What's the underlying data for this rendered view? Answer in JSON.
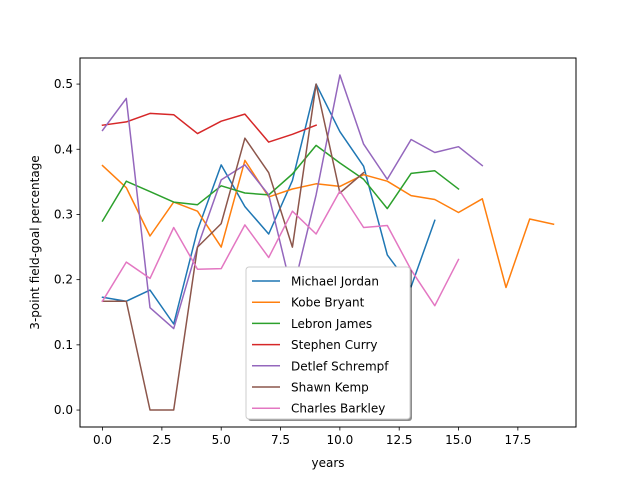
{
  "chart_data": {
    "type": "line",
    "title": "",
    "xlabel": "years",
    "ylabel": "3-point field-goal percentage",
    "xlim": [
      -0.95,
      19.95
    ],
    "ylim": [
      -0.026,
      0.54
    ],
    "xticks": [
      "0.0",
      "2.5",
      "5.0",
      "7.5",
      "10.0",
      "12.5",
      "15.0",
      "17.5"
    ],
    "xtick_values": [
      0,
      2.5,
      5,
      7.5,
      10,
      12.5,
      15,
      17.5
    ],
    "yticks": [
      "0.0",
      "0.1",
      "0.2",
      "0.3",
      "0.4",
      "0.5"
    ],
    "ytick_values": [
      0,
      0.1,
      0.2,
      0.3,
      0.4,
      0.5
    ],
    "grid": false,
    "legend_position": "lower-center",
    "series": [
      {
        "name": "Michael Jordan",
        "color": "#1f77b4",
        "values": [
          0.173,
          0.167,
          0.184,
          0.132,
          0.276,
          0.376,
          0.312,
          0.27,
          0.352,
          0.5,
          0.427,
          0.374,
          0.238,
          0.189,
          0.291
        ]
      },
      {
        "name": "Kobe Bryant",
        "color": "#ff7f0e",
        "values": [
          0.375,
          0.341,
          0.267,
          0.319,
          0.305,
          0.25,
          0.383,
          0.327,
          0.339,
          0.347,
          0.343,
          0.361,
          0.351,
          0.329,
          0.323,
          0.303,
          0.324,
          0.188,
          0.293,
          0.285
        ]
      },
      {
        "name": "Lebron James",
        "color": "#2ca02c",
        "values": [
          0.29,
          0.351,
          0.335,
          0.319,
          0.315,
          0.344,
          0.333,
          0.33,
          0.362,
          0.406,
          0.379,
          0.354,
          0.309,
          0.363,
          0.367,
          0.339
        ]
      },
      {
        "name": "Stephen Curry",
        "color": "#d62728",
        "values": [
          0.437,
          0.442,
          0.455,
          0.453,
          0.424,
          0.443,
          0.454,
          0.411,
          0.423,
          0.437
        ]
      },
      {
        "name": "Detlef Schrempf",
        "color": "#9467bd",
        "values": [
          0.429,
          0.478,
          0.157,
          0.125,
          0.25,
          0.353,
          0.376,
          0.33,
          0.179,
          0.33,
          0.514,
          0.408,
          0.354,
          0.415,
          0.395,
          0.404,
          0.375
        ]
      },
      {
        "name": "Shawn Kemp",
        "color": "#8c564b",
        "values": [
          0.167,
          0.167,
          0.0,
          0.0,
          0.25,
          0.286,
          0.417,
          0.364,
          0.25,
          0.5,
          0.333,
          0.364
        ]
      },
      {
        "name": "Charles Barkley",
        "color": "#e377c2",
        "values": [
          0.167,
          0.227,
          0.202,
          0.28,
          0.216,
          0.217,
          0.284,
          0.234,
          0.305,
          0.27,
          0.336,
          0.28,
          0.283,
          0.215,
          0.16,
          0.231
        ]
      }
    ]
  }
}
